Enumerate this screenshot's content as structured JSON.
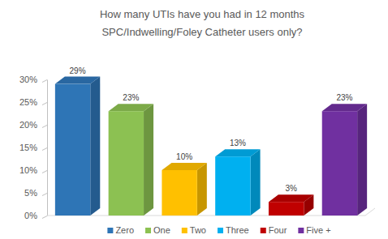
{
  "chart_data": {
    "type": "bar",
    "title": "How many UTIs have you had in 12 months\nSPC/Indwelling/Foley Catheter users only?",
    "categories": [
      "Zero",
      "One",
      "Two",
      "Three",
      "Four",
      "Five +"
    ],
    "values": [
      29,
      23,
      10,
      13,
      3,
      23
    ],
    "value_labels": [
      "29%",
      "23%",
      "10%",
      "13%",
      "3%",
      "23%"
    ],
    "colors": [
      "#2e75b6",
      "#8cc152",
      "#ffc000",
      "#00b0f0",
      "#c00000",
      "#7030a0"
    ],
    "ylim": [
      0,
      30
    ],
    "yticks": [
      {
        "value": 0,
        "label": "0%"
      },
      {
        "value": 5,
        "label": "5%"
      },
      {
        "value": 10,
        "label": "10%"
      },
      {
        "value": 15,
        "label": "15%"
      },
      {
        "value": 20,
        "label": "20%"
      },
      {
        "value": 25,
        "label": "25%"
      },
      {
        "value": 30,
        "label": "30%"
      }
    ],
    "grid": false,
    "data_labels": true,
    "tick_labels": "y",
    "legend": "bottom"
  }
}
